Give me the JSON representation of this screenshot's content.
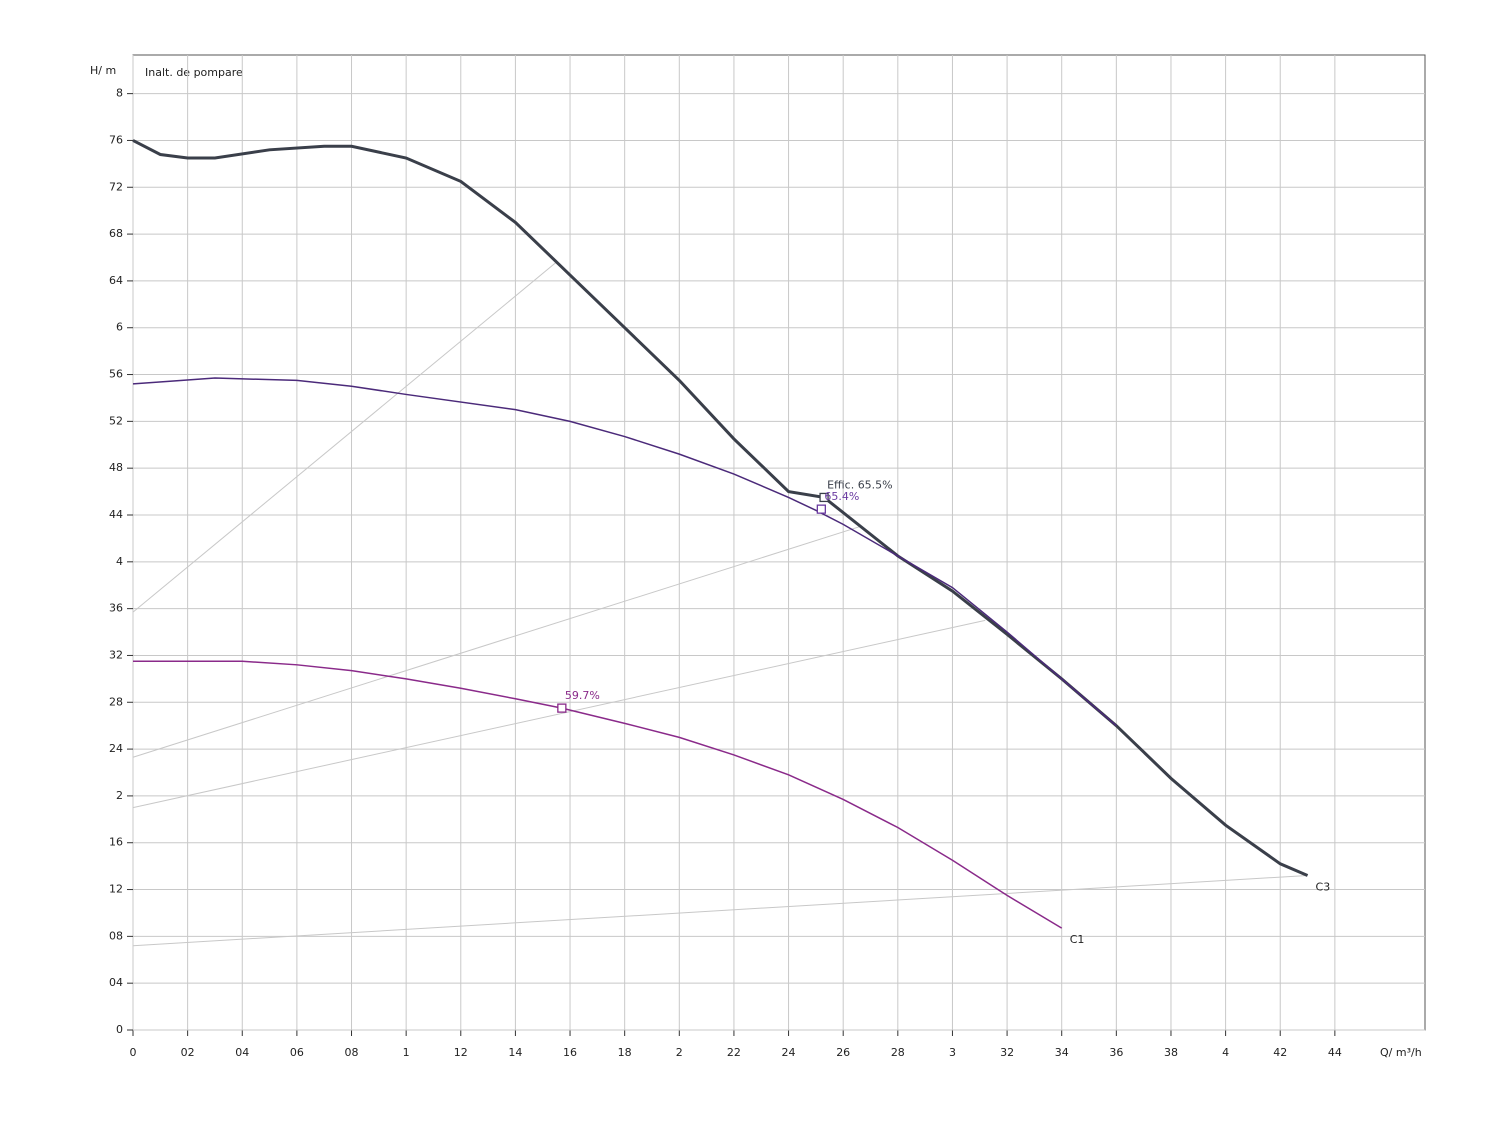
{
  "chart_data": {
    "type": "line",
    "title": "Inalt. de pompare",
    "y_label": "H/ m",
    "x_label": "Q/ m³/h",
    "xlim": [
      0,
      4.73
    ],
    "ylim": [
      0,
      8.33
    ],
    "xticks": [
      0,
      {
        "value": 0.2,
        "label": "02"
      },
      {
        "value": 0.4,
        "label": "04"
      },
      {
        "value": 0.6,
        "label": "06"
      },
      {
        "value": 0.8,
        "label": "08"
      },
      1,
      {
        "value": 1.2,
        "label": "12"
      },
      {
        "value": 1.4,
        "label": "14"
      },
      {
        "value": 1.6,
        "label": "16"
      },
      {
        "value": 1.8,
        "label": "18"
      },
      2,
      {
        "value": 2.2,
        "label": "22"
      },
      {
        "value": 2.4,
        "label": "24"
      },
      {
        "value": 2.6,
        "label": "26"
      },
      {
        "value": 2.8,
        "label": "28"
      },
      3,
      {
        "value": 3.2,
        "label": "32"
      },
      {
        "value": 3.4,
        "label": "34"
      },
      {
        "value": 3.6,
        "label": "36"
      },
      {
        "value": 3.8,
        "label": "38"
      },
      4,
      {
        "value": 4.2,
        "label": "42"
      },
      {
        "value": 4.4,
        "label": "44"
      }
    ],
    "yticks": [
      0,
      {
        "value": 0.4,
        "label": "04"
      },
      {
        "value": 0.8,
        "label": "08"
      },
      {
        "value": 1.2,
        "label": "12"
      },
      {
        "value": 1.6,
        "label": "16"
      },
      2,
      {
        "value": 2.4,
        "label": "24"
      },
      {
        "value": 2.8,
        "label": "28"
      },
      {
        "value": 3.2,
        "label": "32"
      },
      {
        "value": 3.6,
        "label": "36"
      },
      4,
      {
        "value": 4.4,
        "label": "44"
      },
      {
        "value": 4.8,
        "label": "48"
      },
      {
        "value": 5.2,
        "label": "52"
      },
      {
        "value": 5.6,
        "label": "56"
      },
      6,
      {
        "value": 6.4,
        "label": "64"
      },
      {
        "value": 6.8,
        "label": "68"
      },
      {
        "value": 7.2,
        "label": "72"
      },
      {
        "value": 7.6,
        "label": "76"
      },
      8
    ],
    "grid": true,
    "series": [
      {
        "name": "C3",
        "color": "#3a3f4a",
        "width": 3,
        "x": [
          0,
          0.1,
          0.2,
          0.3,
          0.5,
          0.7,
          0.8,
          1,
          1.2,
          1.4,
          1.6,
          1.8,
          2,
          2.2,
          2.4,
          2.53,
          2.8,
          3,
          3.2,
          3.4,
          3.6,
          3.8,
          4,
          4.2,
          4.3
        ],
        "values": [
          7.6,
          7.48,
          7.45,
          7.45,
          7.52,
          7.55,
          7.55,
          7.45,
          7.25,
          6.9,
          6.45,
          6.0,
          5.55,
          5.05,
          4.6,
          4.55,
          4.05,
          3.75,
          3.38,
          3.0,
          2.6,
          2.15,
          1.75,
          1.42,
          1.32
        ]
      },
      {
        "color": "#4b2a7a",
        "width": 1.5,
        "x": [
          0,
          0.3,
          0.6,
          0.8,
          1,
          1.4,
          1.6,
          1.8,
          2,
          2.2,
          2.4,
          2.5,
          2.6,
          2.8,
          3,
          3.2,
          3.4,
          3.6
        ],
        "values": [
          5.52,
          5.57,
          5.55,
          5.5,
          5.43,
          5.3,
          5.2,
          5.07,
          4.92,
          4.75,
          4.55,
          4.44,
          4.32,
          4.05,
          3.78,
          3.4,
          3.0,
          2.6
        ]
      },
      {
        "name": "C1",
        "color": "#8a2a8a",
        "width": 1.5,
        "x": [
          0,
          0.4,
          0.6,
          0.8,
          1,
          1.2,
          1.4,
          1.57,
          1.8,
          2,
          2.2,
          2.4,
          2.6,
          2.8,
          3,
          3.2,
          3.4
        ],
        "values": [
          3.15,
          3.15,
          3.12,
          3.07,
          3.0,
          2.92,
          2.83,
          2.75,
          2.62,
          2.5,
          2.35,
          2.18,
          1.97,
          1.73,
          1.45,
          1.15,
          0.87
        ]
      }
    ],
    "system_curves": [
      {
        "color": "#c8c8c8",
        "x": [
          0,
          1.55
        ],
        "values": [
          3.57,
          6.56
        ]
      },
      {
        "color": "#c8c8c8",
        "x": [
          0,
          2.66
        ],
        "values": [
          2.33,
          4.3
        ]
      },
      {
        "color": "#c8c8c8",
        "x": [
          0,
          3.12
        ],
        "values": [
          1.9,
          3.5
        ]
      },
      {
        "color": "#c8c8c8",
        "x": [
          0,
          4.3
        ],
        "values": [
          0.72,
          1.32
        ]
      }
    ],
    "points": [
      {
        "label": "Effic. 65.5%",
        "x": 2.53,
        "y": 4.55,
        "color": "#3a3f4a"
      },
      {
        "label": "65.4%",
        "x": 2.52,
        "y": 4.45,
        "color": "#6a3aa0"
      },
      {
        "label": "59.7%",
        "x": 1.57,
        "y": 2.75,
        "color": "#8a2a8a"
      }
    ]
  }
}
